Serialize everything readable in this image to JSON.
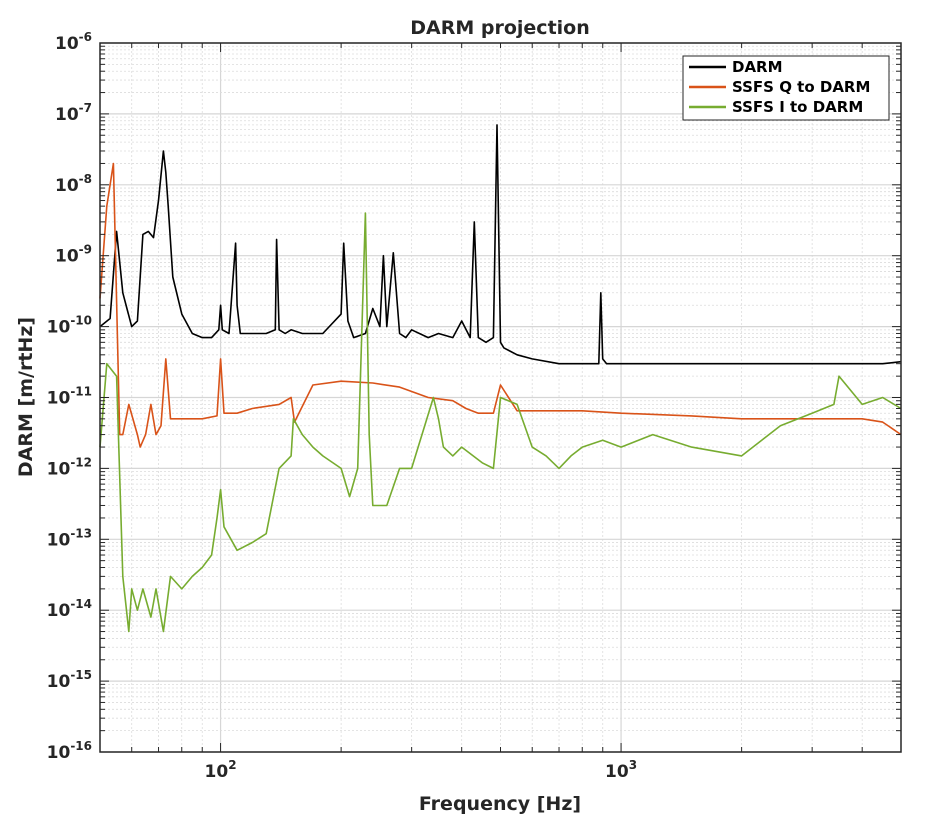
{
  "chart_data": {
    "type": "line",
    "title": "DARM projection",
    "xlabel": "Frequency [Hz]",
    "ylabel": "DARM [m/rtHz]",
    "xscale": "log",
    "yscale": "log",
    "xlim": [
      50,
      5000
    ],
    "ylim": [
      1e-16,
      1e-06
    ],
    "grid": true,
    "legend_position": "top-right",
    "x_tick_labels": [
      {
        "value": 100,
        "base": "10",
        "exp": "2"
      },
      {
        "value": 1000,
        "base": "10",
        "exp": "3"
      }
    ],
    "y_tick_labels": [
      {
        "value": 1e-06,
        "base": "10",
        "exp": "-6"
      },
      {
        "value": 1e-07,
        "base": "10",
        "exp": "-7"
      },
      {
        "value": 1e-08,
        "base": "10",
        "exp": "-8"
      },
      {
        "value": 1e-09,
        "base": "10",
        "exp": "-9"
      },
      {
        "value": 1e-10,
        "base": "10",
        "exp": "-10"
      },
      {
        "value": 1e-11,
        "base": "10",
        "exp": "-11"
      },
      {
        "value": 1e-12,
        "base": "10",
        "exp": "-12"
      },
      {
        "value": 1e-13,
        "base": "10",
        "exp": "-13"
      },
      {
        "value": 1e-14,
        "base": "10",
        "exp": "-14"
      },
      {
        "value": 1e-15,
        "base": "10",
        "exp": "-15"
      },
      {
        "value": 1e-16,
        "base": "10",
        "exp": "-16"
      }
    ],
    "series": [
      {
        "name": "DARM",
        "color": "#000000",
        "x": [
          50,
          53,
          55,
          57,
          60,
          62,
          64,
          66,
          68,
          70,
          72,
          73,
          74,
          76,
          80,
          85,
          90,
          95,
          99,
          100,
          101,
          105,
          109,
          110,
          112,
          120,
          130,
          137,
          138,
          140,
          145,
          150,
          160,
          180,
          200,
          203,
          208,
          215,
          230,
          240,
          250,
          255,
          260,
          270,
          280,
          290,
          300,
          330,
          350,
          380,
          400,
          420,
          430,
          440,
          460,
          480,
          490,
          500,
          510,
          550,
          600,
          700,
          800,
          880,
          890,
          900,
          920,
          1000,
          1200,
          1500,
          2000,
          2500,
          3000,
          3500,
          4000,
          4500,
          5000
        ],
        "y": [
          1e-10,
          1.3e-10,
          2.2e-09,
          3e-10,
          1e-10,
          1.2e-10,
          2e-09,
          2.2e-09,
          1.8e-09,
          6e-09,
          3e-08,
          1.5e-08,
          5e-09,
          5e-10,
          1.5e-10,
          8e-11,
          7e-11,
          7e-11,
          9e-11,
          2e-10,
          9e-11,
          8e-11,
          1.5e-09,
          2e-10,
          8e-11,
          8e-11,
          8e-11,
          9e-11,
          1.7e-09,
          9e-11,
          8e-11,
          9e-11,
          8e-11,
          8e-11,
          1.5e-10,
          1.5e-09,
          1.2e-10,
          7e-11,
          8e-11,
          1.8e-10,
          1e-10,
          1e-09,
          1e-10,
          1.1e-09,
          8e-11,
          7e-11,
          9e-11,
          7e-11,
          8e-11,
          7e-11,
          1.2e-10,
          7e-11,
          3e-09,
          7e-11,
          6e-11,
          7e-11,
          7e-08,
          6e-11,
          5e-11,
          4e-11,
          3.5e-11,
          3e-11,
          3e-11,
          3e-11,
          3e-10,
          3.5e-11,
          3e-11,
          3e-11,
          3e-11,
          3e-11,
          3e-11,
          3e-11,
          3e-11,
          3e-11,
          3e-11,
          3e-11,
          3.2e-11
        ]
      },
      {
        "name": "SSFS Q to DARM",
        "color": "#D95319",
        "x": [
          50,
          52,
          54,
          56,
          57,
          59,
          62,
          63,
          65,
          67,
          69,
          71,
          73,
          75,
          80,
          90,
          98,
          100,
          102,
          110,
          120,
          140,
          150,
          153,
          170,
          200,
          240,
          280,
          330,
          380,
          410,
          440,
          480,
          500,
          550,
          600,
          700,
          800,
          1000,
          1500,
          2000,
          2500,
          3000,
          3500,
          4000,
          4500,
          5000
        ],
        "y": [
          2.5e-10,
          5e-09,
          2e-08,
          3e-12,
          3e-12,
          8e-12,
          3e-12,
          2e-12,
          3e-12,
          8e-12,
          3e-12,
          4e-12,
          3.5e-11,
          5e-12,
          5e-12,
          5e-12,
          5.5e-12,
          3.5e-11,
          6e-12,
          6e-12,
          7e-12,
          8e-12,
          1e-11,
          4.5e-12,
          1.5e-11,
          1.7e-11,
          1.6e-11,
          1.4e-11,
          1e-11,
          9e-12,
          7e-12,
          6e-12,
          6e-12,
          1.5e-11,
          6.5e-12,
          6.5e-12,
          6.5e-12,
          6.5e-12,
          6e-12,
          5.5e-12,
          5e-12,
          5e-12,
          5e-12,
          5e-12,
          5e-12,
          4.5e-12,
          3e-12
        ]
      },
      {
        "name": "SSFS I to DARM",
        "color": "#77AC30",
        "x": [
          50,
          52,
          55,
          57,
          59,
          60,
          62,
          64,
          67,
          69,
          72,
          75,
          80,
          85,
          90,
          95,
          98,
          100,
          102,
          110,
          120,
          130,
          140,
          150,
          152,
          160,
          170,
          180,
          200,
          210,
          220,
          230,
          235,
          240,
          250,
          260,
          280,
          300,
          340,
          350,
          360,
          380,
          400,
          450,
          480,
          500,
          550,
          600,
          650,
          700,
          750,
          800,
          900,
          1000,
          1200,
          1500,
          2000,
          2500,
          3000,
          3400,
          3500,
          4000,
          4500,
          5000
        ],
        "y": [
          2e-12,
          3e-11,
          2e-11,
          3e-14,
          5e-15,
          2e-14,
          1e-14,
          2e-14,
          8e-15,
          2e-14,
          5e-15,
          3e-14,
          2e-14,
          3e-14,
          4e-14,
          6e-14,
          2e-13,
          5e-13,
          1.5e-13,
          7e-14,
          9e-14,
          1.2e-13,
          1e-12,
          1.5e-12,
          5e-12,
          3e-12,
          2e-12,
          1.5e-12,
          1e-12,
          4e-13,
          1e-12,
          4e-09,
          3e-12,
          3e-13,
          3e-13,
          3e-13,
          1e-12,
          1e-12,
          1e-11,
          5e-12,
          2e-12,
          1.5e-12,
          2e-12,
          1.2e-12,
          1e-12,
          1e-11,
          8e-12,
          2e-12,
          1.5e-12,
          1e-12,
          1.5e-12,
          2e-12,
          2.5e-12,
          2e-12,
          3e-12,
          2e-12,
          1.5e-12,
          4e-12,
          6e-12,
          8e-12,
          2e-11,
          8e-12,
          1e-11,
          7e-12
        ]
      }
    ]
  }
}
